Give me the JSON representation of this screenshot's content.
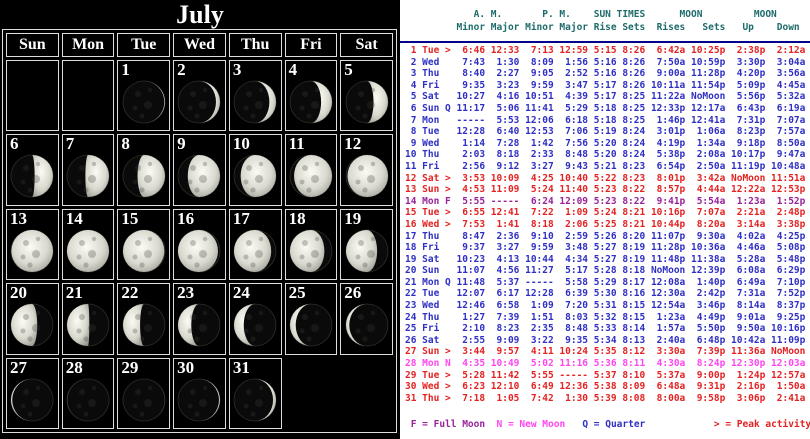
{
  "calendar": {
    "title": "July",
    "weekday_headers": [
      "Sun",
      "Mon",
      "Tue",
      "Wed",
      "Thu",
      "Fri",
      "Sat"
    ],
    "weeks": [
      [
        null,
        null,
        {
          "d": 1,
          "phase": 0.04
        },
        {
          "d": 2,
          "phase": 0.1
        },
        {
          "d": 3,
          "phase": 0.13
        },
        {
          "d": 4,
          "phase": 0.17
        },
        {
          "d": 5,
          "phase": 0.2
        }
      ],
      [
        {
          "d": 6,
          "phase": 0.23
        },
        {
          "d": 7,
          "phase": 0.27
        },
        {
          "d": 8,
          "phase": 0.3
        },
        {
          "d": 9,
          "phase": 0.34
        },
        {
          "d": 10,
          "phase": 0.37
        },
        {
          "d": 11,
          "phase": 0.4
        },
        {
          "d": 12,
          "phase": 0.44
        }
      ],
      [
        {
          "d": 13,
          "phase": 0.47
        },
        {
          "d": 14,
          "phase": 0.505
        },
        {
          "d": 15,
          "phase": 0.54
        },
        {
          "d": 16,
          "phase": 0.57
        },
        {
          "d": 17,
          "phase": 0.61
        },
        {
          "d": 18,
          "phase": 0.64
        },
        {
          "d": 19,
          "phase": 0.67
        }
      ],
      [
        {
          "d": 20,
          "phase": 0.71
        },
        {
          "d": 21,
          "phase": 0.74
        },
        {
          "d": 22,
          "phase": 0.78
        },
        {
          "d": 23,
          "phase": 0.81
        },
        {
          "d": 24,
          "phase": 0.84
        },
        {
          "d": 25,
          "phase": 0.88
        },
        {
          "d": 26,
          "phase": 0.91
        }
      ],
      [
        {
          "d": 27,
          "phase": 0.945
        },
        {
          "d": 28,
          "phase": 0.985
        },
        {
          "d": 29,
          "phase": 0.013
        },
        {
          "d": 30,
          "phase": 0.05
        },
        {
          "d": 31,
          "phase": 0.085
        },
        null,
        null
      ]
    ]
  },
  "solunar_table": {
    "header_line1": [
      {
        "text": "A. M.",
        "col": 12
      },
      {
        "text": "P. M.",
        "col": 24
      },
      {
        "text": "SUN TIMES",
        "col": 33
      },
      {
        "text": "MOON",
        "col": 48
      },
      {
        "text": "MOON",
        "col": 61
      }
    ],
    "header_line2": [
      {
        "text": "Minor",
        "col": 9
      },
      {
        "text": "Major",
        "col": 15
      },
      {
        "text": "Minor",
        "col": 21
      },
      {
        "text": "Major",
        "col": 27
      },
      {
        "text": "Rise",
        "col": 33
      },
      {
        "text": "Sets",
        "col": 38
      },
      {
        "text": "Rises",
        "col": 44
      },
      {
        "text": "Sets",
        "col": 52
      },
      {
        "text": "Up",
        "col": 59
      },
      {
        "text": "Down",
        "col": 65
      }
    ],
    "rows": [
      {
        "day": 1,
        "dow": "Tue",
        "flag": ">",
        "am_minor": "6:46",
        "am_major": "12:33",
        "pm_minor": "7:13",
        "pm_major": "12:59",
        "sun_rise": "5:15",
        "sun_set": "8:26",
        "moon_rises": "6:42a",
        "moon_sets": "10:25p",
        "moon_up": "2:38p",
        "moon_down": "2:12a",
        "style": "peak"
      },
      {
        "day": 2,
        "dow": "Wed",
        "flag": "",
        "am_minor": "7:43",
        "am_major": "1:30",
        "pm_minor": "8:09",
        "pm_major": "1:56",
        "sun_rise": "5:16",
        "sun_set": "8:26",
        "moon_rises": "7:50a",
        "moon_sets": "10:59p",
        "moon_up": "3:30p",
        "moon_down": "3:04a",
        "style": "normal"
      },
      {
        "day": 3,
        "dow": "Thu",
        "flag": "",
        "am_minor": "8:40",
        "am_major": "2:27",
        "pm_minor": "9:05",
        "pm_major": "2:52",
        "sun_rise": "5:16",
        "sun_set": "8:26",
        "moon_rises": "9:00a",
        "moon_sets": "11:28p",
        "moon_up": "4:20p",
        "moon_down": "3:56a",
        "style": "normal"
      },
      {
        "day": 4,
        "dow": "Fri",
        "flag": "",
        "am_minor": "9:35",
        "am_major": "3:23",
        "pm_minor": "9:59",
        "pm_major": "3:47",
        "sun_rise": "5:17",
        "sun_set": "8:26",
        "moon_rises": "10:11a",
        "moon_sets": "11:54p",
        "moon_up": "5:09p",
        "moon_down": "4:45a",
        "style": "normal"
      },
      {
        "day": 5,
        "dow": "Sat",
        "flag": "",
        "am_minor": "10:27",
        "am_major": "4:16",
        "pm_minor": "10:51",
        "pm_major": "4:39",
        "sun_rise": "5:17",
        "sun_set": "8:25",
        "moon_rises": "11:22a",
        "moon_sets": "NoMoon",
        "moon_up": "5:56p",
        "moon_down": "5:32a",
        "style": "normal"
      },
      {
        "day": 6,
        "dow": "Sun",
        "flag": "Q",
        "am_minor": "11:17",
        "am_major": "5:06",
        "pm_minor": "11:41",
        "pm_major": "5:29",
        "sun_rise": "5:18",
        "sun_set": "8:25",
        "moon_rises": "12:33p",
        "moon_sets": "12:17a",
        "moon_up": "6:43p",
        "moon_down": "6:19a",
        "style": "normal"
      },
      {
        "day": 7,
        "dow": "Mon",
        "flag": "",
        "am_minor": "-----",
        "am_major": "5:53",
        "pm_minor": "12:06",
        "pm_major": "6:18",
        "sun_rise": "5:18",
        "sun_set": "8:25",
        "moon_rises": "1:46p",
        "moon_sets": "12:41a",
        "moon_up": "7:31p",
        "moon_down": "7:07a",
        "style": "normal"
      },
      {
        "day": 8,
        "dow": "Tue",
        "flag": "",
        "am_minor": "12:28",
        "am_major": "6:40",
        "pm_minor": "12:53",
        "pm_major": "7:06",
        "sun_rise": "5:19",
        "sun_set": "8:24",
        "moon_rises": "3:01p",
        "moon_sets": "1:06a",
        "moon_up": "8:23p",
        "moon_down": "7:57a",
        "style": "normal"
      },
      {
        "day": 9,
        "dow": "Wed",
        "flag": "",
        "am_minor": "1:14",
        "am_major": "7:28",
        "pm_minor": "1:42",
        "pm_major": "7:56",
        "sun_rise": "5:20",
        "sun_set": "8:24",
        "moon_rises": "4:19p",
        "moon_sets": "1:34a",
        "moon_up": "9:18p",
        "moon_down": "8:50a",
        "style": "normal"
      },
      {
        "day": 10,
        "dow": "Thu",
        "flag": "",
        "am_minor": "2:03",
        "am_major": "8:18",
        "pm_minor": "2:33",
        "pm_major": "8:48",
        "sun_rise": "5:20",
        "sun_set": "8:24",
        "moon_rises": "5:38p",
        "moon_sets": "2:08a",
        "moon_up": "10:17p",
        "moon_down": "9:47a",
        "style": "normal"
      },
      {
        "day": 11,
        "dow": "Fri",
        "flag": "",
        "am_minor": "2:56",
        "am_major": "9:12",
        "pm_minor": "3:27",
        "pm_major": "9:43",
        "sun_rise": "5:21",
        "sun_set": "8:23",
        "moon_rises": "6:54p",
        "moon_sets": "2:50a",
        "moon_up": "11:19p",
        "moon_down": "10:48a",
        "style": "normal"
      },
      {
        "day": 12,
        "dow": "Sat",
        "flag": ">",
        "am_minor": "3:53",
        "am_major": "10:09",
        "pm_minor": "4:25",
        "pm_major": "10:40",
        "sun_rise": "5:22",
        "sun_set": "8:23",
        "moon_rises": "8:01p",
        "moon_sets": "3:42a",
        "moon_up": "NoMoon",
        "moon_down": "11:51a",
        "style": "peak"
      },
      {
        "day": 13,
        "dow": "Sun",
        "flag": ">",
        "am_minor": "4:53",
        "am_major": "11:09",
        "pm_minor": "5:24",
        "pm_major": "11:40",
        "sun_rise": "5:23",
        "sun_set": "8:22",
        "moon_rises": "8:57p",
        "moon_sets": "4:44a",
        "moon_up": "12:22a",
        "moon_down": "12:53p",
        "style": "peak"
      },
      {
        "day": 14,
        "dow": "Mon",
        "flag": "F",
        "am_minor": "5:55",
        "am_major": "-----",
        "pm_minor": "6:24",
        "pm_major": "12:09",
        "sun_rise": "5:23",
        "sun_set": "8:22",
        "moon_rises": "9:41p",
        "moon_sets": "5:54a",
        "moon_up": "1:23a",
        "moon_down": "1:52p",
        "style": "full"
      },
      {
        "day": 15,
        "dow": "Tue",
        "flag": ">",
        "am_minor": "6:55",
        "am_major": "12:41",
        "pm_minor": "7:22",
        "pm_major": "1:09",
        "sun_rise": "5:24",
        "sun_set": "8:21",
        "moon_rises": "10:16p",
        "moon_sets": "7:07a",
        "moon_up": "2:21a",
        "moon_down": "2:48p",
        "style": "peak"
      },
      {
        "day": 16,
        "dow": "Wed",
        "flag": ">",
        "am_minor": "7:53",
        "am_major": "1:41",
        "pm_minor": "8:18",
        "pm_major": "2:06",
        "sun_rise": "5:25",
        "sun_set": "8:21",
        "moon_rises": "10:44p",
        "moon_sets": "8:20a",
        "moon_up": "3:14a",
        "moon_down": "3:38p",
        "style": "peak"
      },
      {
        "day": 17,
        "dow": "Thu",
        "flag": "",
        "am_minor": "8:47",
        "am_major": "2:36",
        "pm_minor": "9:10",
        "pm_major": "2:59",
        "sun_rise": "5:26",
        "sun_set": "8:20",
        "moon_rises": "11:07p",
        "moon_sets": "9:30a",
        "moon_up": "4:02a",
        "moon_down": "4:25p",
        "style": "normal"
      },
      {
        "day": 18,
        "dow": "Fri",
        "flag": "",
        "am_minor": "9:37",
        "am_major": "3:27",
        "pm_minor": "9:59",
        "pm_major": "3:48",
        "sun_rise": "5:27",
        "sun_set": "8:19",
        "moon_rises": "11:28p",
        "moon_sets": "10:36a",
        "moon_up": "4:46a",
        "moon_down": "5:08p",
        "style": "normal"
      },
      {
        "day": 19,
        "dow": "Sat",
        "flag": "",
        "am_minor": "10:23",
        "am_major": "4:13",
        "pm_minor": "10:44",
        "pm_major": "4:34",
        "sun_rise": "5:27",
        "sun_set": "8:19",
        "moon_rises": "11:48p",
        "moon_sets": "11:38a",
        "moon_up": "5:28a",
        "moon_down": "5:48p",
        "style": "normal"
      },
      {
        "day": 20,
        "dow": "Sun",
        "flag": "",
        "am_minor": "11:07",
        "am_major": "4:56",
        "pm_minor": "11:27",
        "pm_major": "5:17",
        "sun_rise": "5:28",
        "sun_set": "8:18",
        "moon_rises": "NoMoon",
        "moon_sets": "12:39p",
        "moon_up": "6:08a",
        "moon_down": "6:29p",
        "style": "normal"
      },
      {
        "day": 21,
        "dow": "Mon",
        "flag": "Q",
        "am_minor": "11:48",
        "am_major": "5:37",
        "pm_minor": "-----",
        "pm_major": "5:58",
        "sun_rise": "5:29",
        "sun_set": "8:17",
        "moon_rises": "12:08a",
        "moon_sets": "1:40p",
        "moon_up": "6:49a",
        "moon_down": "7:10p",
        "style": "normal"
      },
      {
        "day": 22,
        "dow": "Tue",
        "flag": "",
        "am_minor": "12:07",
        "am_major": "6:17",
        "pm_minor": "12:28",
        "pm_major": "6:39",
        "sun_rise": "5:30",
        "sun_set": "8:16",
        "moon_rises": "12:30a",
        "moon_sets": "2:42p",
        "moon_up": "7:31a",
        "moon_down": "7:52p",
        "style": "normal"
      },
      {
        "day": 23,
        "dow": "Wed",
        "flag": "",
        "am_minor": "12:46",
        "am_major": "6:58",
        "pm_minor": "1:09",
        "pm_major": "7:20",
        "sun_rise": "5:31",
        "sun_set": "8:15",
        "moon_rises": "12:54a",
        "moon_sets": "3:46p",
        "moon_up": "8:14a",
        "moon_down": "8:37p",
        "style": "normal"
      },
      {
        "day": 24,
        "dow": "Thu",
        "flag": "",
        "am_minor": "1:27",
        "am_major": "7:39",
        "pm_minor": "1:51",
        "pm_major": "8:03",
        "sun_rise": "5:32",
        "sun_set": "8:15",
        "moon_rises": "1:23a",
        "moon_sets": "4:49p",
        "moon_up": "9:01a",
        "moon_down": "9:25p",
        "style": "normal"
      },
      {
        "day": 25,
        "dow": "Fri",
        "flag": "",
        "am_minor": "2:10",
        "am_major": "8:23",
        "pm_minor": "2:35",
        "pm_major": "8:48",
        "sun_rise": "5:33",
        "sun_set": "8:14",
        "moon_rises": "1:57a",
        "moon_sets": "5:50p",
        "moon_up": "9:50a",
        "moon_down": "10:16p",
        "style": "normal"
      },
      {
        "day": 26,
        "dow": "Sat",
        "flag": "",
        "am_minor": "2:55",
        "am_major": "9:09",
        "pm_minor": "3:22",
        "pm_major": "9:35",
        "sun_rise": "5:34",
        "sun_set": "8:13",
        "moon_rises": "2:40a",
        "moon_sets": "6:48p",
        "moon_up": "10:42a",
        "moon_down": "11:09p",
        "style": "normal"
      },
      {
        "day": 27,
        "dow": "Sun",
        "flag": ">",
        "am_minor": "3:44",
        "am_major": "9:57",
        "pm_minor": "4:11",
        "pm_major": "10:24",
        "sun_rise": "5:35",
        "sun_set": "8:12",
        "moon_rises": "3:30a",
        "moon_sets": "7:39p",
        "moon_up": "11:36a",
        "moon_down": "NoMoon",
        "style": "peak"
      },
      {
        "day": 28,
        "dow": "Mon",
        "flag": "N",
        "am_minor": "4:35",
        "am_major": "10:49",
        "pm_minor": "5:02",
        "pm_major": "11:16",
        "sun_rise": "5:36",
        "sun_set": "8:11",
        "moon_rises": "4:30a",
        "moon_sets": "8:24p",
        "moon_up": "12:30p",
        "moon_down": "12:03a",
        "style": "new"
      },
      {
        "day": 29,
        "dow": "Tue",
        "flag": ">",
        "am_minor": "5:28",
        "am_major": "11:42",
        "pm_minor": "5:55",
        "pm_major": "-----",
        "sun_rise": "5:37",
        "sun_set": "8:10",
        "moon_rises": "5:37a",
        "moon_sets": "9:00p",
        "moon_up": "1:24p",
        "moon_down": "12:57a",
        "style": "peak"
      },
      {
        "day": 30,
        "dow": "Wed",
        "flag": ">",
        "am_minor": "6:23",
        "am_major": "12:10",
        "pm_minor": "6:49",
        "pm_major": "12:36",
        "sun_rise": "5:38",
        "sun_set": "8:09",
        "moon_rises": "6:48a",
        "moon_sets": "9:31p",
        "moon_up": "2:16p",
        "moon_down": "1:50a",
        "style": "peak"
      },
      {
        "day": 31,
        "dow": "Thu",
        "flag": ">",
        "am_minor": "7:18",
        "am_major": "1:05",
        "pm_minor": "7:42",
        "pm_major": "1:30",
        "sun_rise": "5:39",
        "sun_set": "8:08",
        "moon_rises": "8:00a",
        "moon_sets": "9:58p",
        "moon_up": "3:06p",
        "moon_down": "2:41a",
        "style": "peak"
      }
    ],
    "legend": [
      {
        "text": "F = Full Moon",
        "style": "full",
        "col": 1
      },
      {
        "text": "N = New Moon",
        "style": "new",
        "col": 16
      },
      {
        "text": "Q = Quarter",
        "style": "normal",
        "col": 31
      },
      {
        "text": "> = Peak activity",
        "style": "peak",
        "col": 54
      }
    ]
  },
  "colors": {
    "row_normal": "#2f2fc4",
    "row_peak": "#e32222",
    "row_full": "#992299",
    "row_new": "#ff44ee",
    "table_header": "#1e6b6b",
    "divider": "#00008b",
    "calendar_bg": "#000000",
    "grid_line": "#dddddd"
  }
}
